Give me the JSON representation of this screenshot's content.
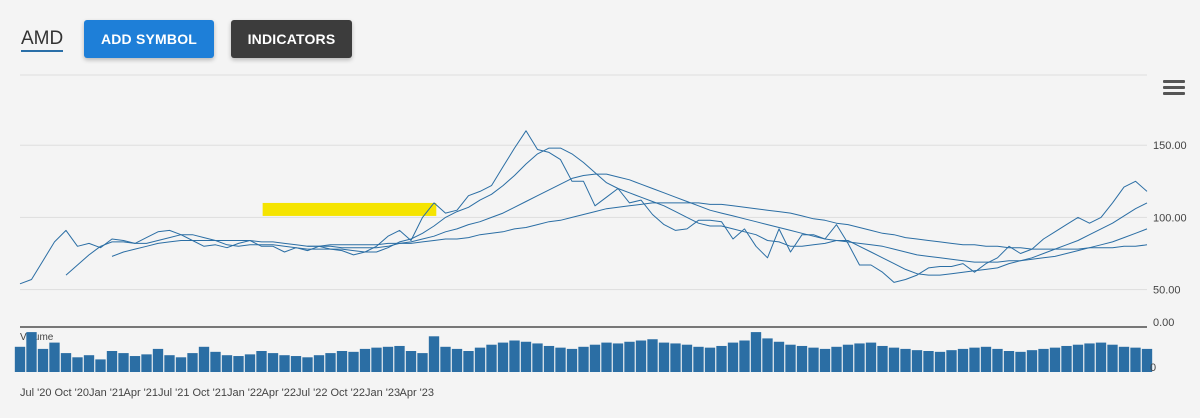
{
  "symbol": "AMD",
  "buttons": {
    "add_symbol": "ADD SYMBOL",
    "indicators": "INDICATORS"
  },
  "icons": {
    "menu": "hamburger-menu-icon"
  },
  "colors": {
    "price": "#2b6ea4",
    "volume": "#2b6ea4",
    "highlight": "#f5e400",
    "add_button": "#1e7fd8",
    "indicators_button": "#3c3c3c"
  },
  "chart_data": {
    "type": "line",
    "price_axis": {
      "ticks": [
        "150.00",
        "100.00",
        "50.00"
      ],
      "values": [
        150,
        100,
        50
      ],
      "ylim": [
        22,
        200
      ]
    },
    "volume_axis": {
      "label": "Volume",
      "ticks": [
        "0.00",
        "0"
      ]
    },
    "x_labels": [
      "Jul '20",
      "Oct '20",
      "Jan '21",
      "Apr '21",
      "Jul '21",
      "Oct '21",
      "Jan '22",
      "Apr '22",
      "Jul '22",
      "Oct '22",
      "Jan '23",
      "Apr '23"
    ],
    "x_label_index": [
      0,
      3,
      6,
      9,
      12,
      15,
      18,
      21,
      24,
      27,
      30,
      33
    ],
    "highlight": {
      "x_from": 21.1,
      "x_to": 36.2,
      "y_low": 101,
      "y_high": 110
    },
    "series": [
      {
        "name": "",
        "stroke": 1.0,
        "values": [
          54,
          57,
          70,
          83,
          91,
          80,
          82,
          79,
          85,
          84,
          82,
          86,
          90,
          91,
          88,
          84,
          80,
          81,
          79,
          82,
          84,
          80,
          80,
          76,
          79,
          77,
          80,
          78,
          77,
          74,
          76,
          80,
          87,
          91,
          84,
          100,
          110,
          103,
          105,
          115,
          118,
          122,
          135,
          148,
          160,
          147,
          145,
          140,
          125,
          125,
          108,
          114,
          120,
          110,
          112,
          102,
          95,
          91,
          92,
          98,
          98,
          97,
          85,
          92,
          80,
          72,
          92,
          76,
          88,
          88,
          85,
          95,
          82,
          67,
          67,
          62,
          55,
          57,
          60,
          65,
          66,
          66,
          68,
          62,
          68,
          72,
          80,
          75,
          78,
          85,
          90,
          95,
          100,
          96,
          100,
          110,
          121,
          125,
          118
        ]
      },
      {
        "name": "",
        "stroke": 1.0,
        "values": [
          null,
          null,
          null,
          null,
          60,
          67,
          74,
          80,
          83,
          83,
          82,
          82,
          84,
          86,
          88,
          88,
          86,
          84,
          81,
          80,
          81,
          81,
          81,
          80,
          79,
          78,
          78,
          78,
          78,
          77,
          76,
          76,
          79,
          83,
          85,
          89,
          94,
          100,
          104,
          107,
          112,
          116,
          122,
          129,
          137,
          144,
          148,
          148,
          144,
          138,
          131,
          124,
          120,
          117,
          114,
          111,
          108,
          104,
          100,
          96,
          94,
          94,
          92,
          90,
          88,
          84,
          83,
          80,
          80,
          81,
          82,
          84,
          84,
          80,
          76,
          72,
          68,
          64,
          61,
          60,
          60,
          61,
          62,
          63,
          64,
          65,
          68,
          70,
          72,
          75,
          78,
          81,
          84,
          88,
          92,
          96,
          101,
          106,
          110
        ]
      },
      {
        "name": "",
        "stroke": 1.0,
        "values": [
          null,
          null,
          null,
          null,
          null,
          null,
          null,
          null,
          73,
          76,
          78,
          80,
          82,
          83,
          84,
          84,
          84,
          84,
          84,
          84,
          84,
          83,
          83,
          82,
          81,
          80,
          80,
          80,
          79,
          79,
          79,
          79,
          80,
          82,
          83,
          85,
          87,
          90,
          92,
          95,
          97,
          100,
          103,
          107,
          111,
          115,
          119,
          123,
          127,
          129,
          130,
          130,
          128,
          126,
          123,
          120,
          117,
          114,
          111,
          108,
          105,
          103,
          101,
          99,
          97,
          95,
          93,
          91,
          89,
          87,
          85,
          84,
          83,
          82,
          81,
          80,
          78,
          76,
          74,
          73,
          72,
          71,
          70,
          69,
          69,
          69,
          70,
          70,
          71,
          72,
          73,
          75,
          77,
          79,
          81,
          83,
          86,
          89,
          92
        ]
      },
      {
        "name": "",
        "stroke": 1.0,
        "values": [
          null,
          null,
          null,
          null,
          null,
          null,
          null,
          null,
          null,
          null,
          null,
          null,
          null,
          null,
          null,
          null,
          null,
          null,
          null,
          null,
          null,
          null,
          null,
          null,
          null,
          80,
          80,
          81,
          81,
          81,
          81,
          81,
          82,
          82,
          82,
          83,
          84,
          85,
          85,
          86,
          88,
          89,
          90,
          92,
          93,
          95,
          97,
          98,
          100,
          102,
          104,
          106,
          107,
          108,
          109,
          110,
          110,
          110,
          110,
          110,
          109,
          109,
          108,
          107,
          106,
          105,
          104,
          103,
          101,
          99,
          98,
          96,
          95,
          93,
          91,
          89,
          88,
          86,
          85,
          84,
          83,
          82,
          81,
          81,
          80,
          80,
          79,
          79,
          78,
          78,
          78,
          78,
          78,
          79,
          79,
          79,
          80,
          80,
          81
        ]
      }
    ],
    "volume": [
      60,
      95,
      55,
      70,
      45,
      35,
      40,
      30,
      50,
      45,
      38,
      42,
      55,
      40,
      35,
      45,
      60,
      48,
      40,
      38,
      42,
      50,
      45,
      40,
      38,
      35,
      40,
      45,
      50,
      48,
      55,
      58,
      60,
      62,
      50,
      45,
      85,
      60,
      55,
      50,
      58,
      65,
      70,
      75,
      72,
      68,
      62,
      58,
      55,
      60,
      65,
      70,
      68,
      72,
      75,
      78,
      70,
      68,
      65,
      60,
      58,
      62,
      70,
      75,
      95,
      80,
      72,
      65,
      62,
      58,
      55,
      60,
      65,
      68,
      70,
      62,
      58,
      55,
      52,
      50,
      48,
      52,
      55,
      58,
      60,
      55,
      50,
      48,
      52,
      55,
      58,
      62,
      65,
      68,
      70,
      65,
      60,
      58,
      55
    ]
  }
}
